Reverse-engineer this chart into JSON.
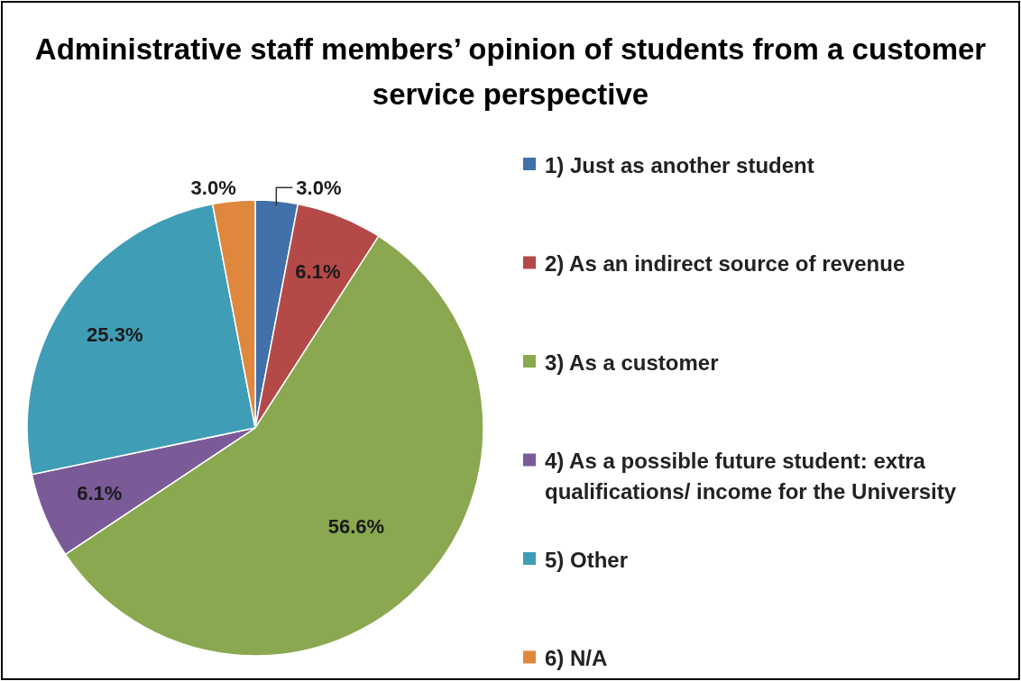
{
  "chart_data": {
    "type": "pie",
    "title": "Administrative staff members’ opinion of students from a customer service perspective",
    "categories": [
      "1) Just as another student",
      "2) As an indirect source of revenue",
      "3) As a customer",
      "4) As a possible future student: extra qualifications/ income for the University",
      "5) Other",
      "6) N/A"
    ],
    "values": [
      3.0,
      6.1,
      56.6,
      6.1,
      25.3,
      3.0
    ],
    "value_labels": [
      "3.0%",
      "6.1%",
      "56.6%",
      "6.1%",
      "25.3%",
      "3.0%"
    ],
    "colors": [
      "#4170aa",
      "#b34a47",
      "#8aa84f",
      "#7a5b97",
      "#409db6",
      "#e0873e"
    ],
    "legend": "right"
  }
}
